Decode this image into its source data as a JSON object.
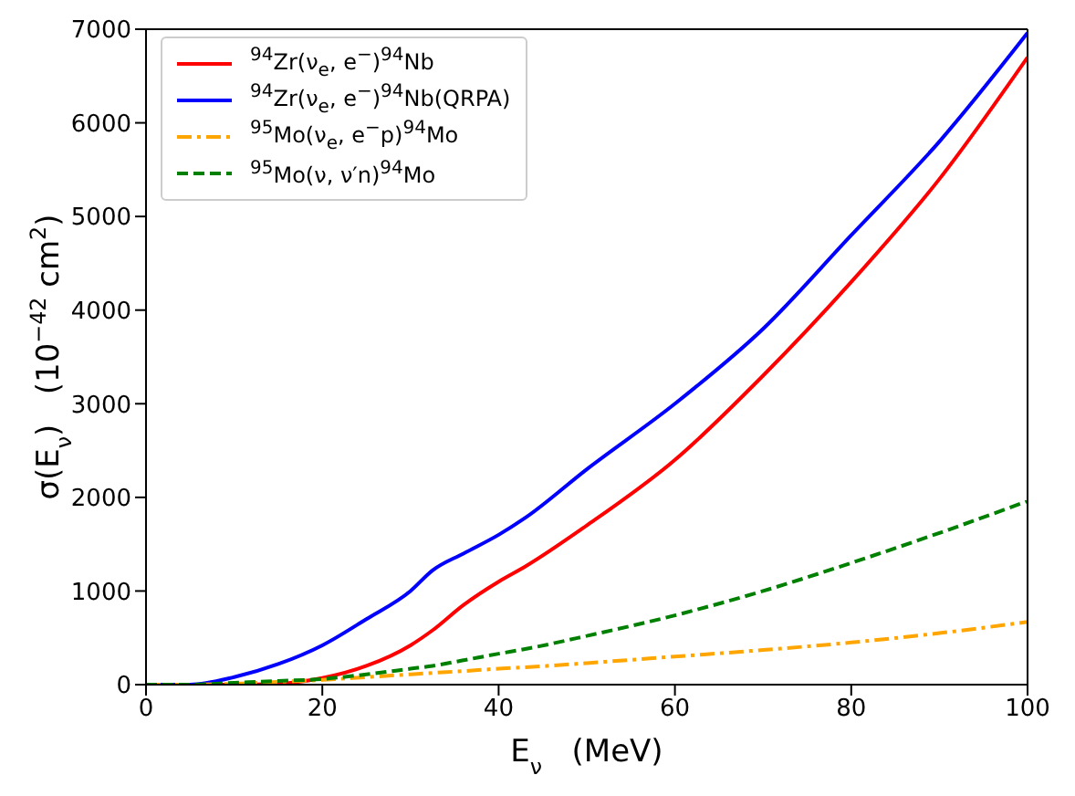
{
  "chart_data": {
    "type": "line",
    "xlabel": "E$_{ν}$   (MeV)",
    "ylabel": "σ(E$_{ν}$)   (10$^{−42}$ cm$^{2}$)",
    "x": [
      0,
      5,
      10,
      15,
      20,
      25,
      30,
      32.5,
      36,
      40,
      43,
      50,
      60,
      70,
      80,
      90,
      100
    ],
    "xlim": [
      0,
      100
    ],
    "xticks": [
      0,
      20,
      40,
      60,
      80,
      100
    ],
    "ylim": [
      0,
      7000
    ],
    "yticks": [
      0,
      1000,
      2000,
      3000,
      4000,
      5000,
      6000,
      7000
    ],
    "legend": "top left",
    "marker": "none",
    "series": [
      {
        "name": "$^{94}$Zr(ν$_{e}$, e$^{−}$)$^{94}$Nb",
        "color": "#ff0000",
        "line_style": "solid",
        "values": [
          0,
          0,
          0,
          10,
          70,
          200,
          420,
          580,
          850,
          1100,
          1260,
          1700,
          2400,
          3300,
          4300,
          5400,
          6700
        ]
      },
      {
        "name": "$^{94}$Zr(ν$_{e}$, e$^{−}$)$^{94}$Nb(QRPA)",
        "color": "#0000ff",
        "line_style": "solid",
        "values": [
          0,
          0,
          80,
          220,
          420,
          700,
          1000,
          1220,
          1400,
          1600,
          1780,
          2300,
          3000,
          3800,
          4800,
          5800,
          6960
        ]
      },
      {
        "name": "$^{95}$Mo(ν$_{e}$, e$^{−}$p)$^{94}$Mo",
        "color": "#ffa500",
        "line_style": "dashdot",
        "values": [
          0,
          0,
          10,
          30,
          50,
          80,
          110,
          125,
          145,
          170,
          185,
          230,
          300,
          370,
          450,
          550,
          670
        ]
      },
      {
        "name": "$^{95}$Mo(ν, ν′n)$^{94}$Mo",
        "color": "#008000",
        "line_style": "dashed",
        "values": [
          0,
          0,
          20,
          40,
          60,
          110,
          170,
          200,
          260,
          330,
          380,
          520,
          740,
          1000,
          1300,
          1620,
          1960
        ]
      }
    ]
  }
}
